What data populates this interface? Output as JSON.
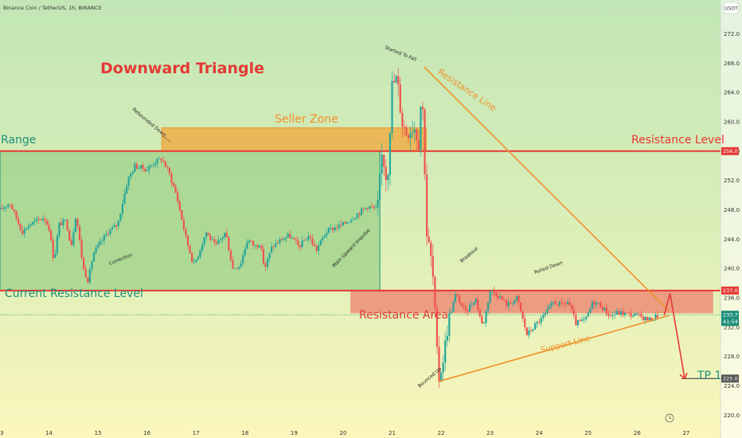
{
  "header": {
    "symbol_line": "Binance Coin / TetherUS, 1h, BINANCE",
    "currency": "USDT"
  },
  "colors": {
    "up": "#26a69a",
    "down": "#ef5350",
    "resistance": "#e53935",
    "orange": "#f0902a",
    "teal": "#1e8f7a",
    "range_fill": "#9ed28a",
    "price_tag": "#1e8f7a"
  },
  "labels": {
    "downward_triangle": "Downward Triangle",
    "seller_zone": "Seller Zone",
    "range": "Range",
    "resistance_level": "Resistance Level",
    "current_resistance_level": "Current Resistance Level",
    "resistance_area": "Resistance Area",
    "resistance_line": "Resistance Line",
    "support_line": "Support Line",
    "tp1": "TP 1"
  },
  "annotations": {
    "rebounded_down": "Rebounded Down",
    "correction": "Correction",
    "main_upward_impulse": "Main Upward Impulse",
    "started_to_fall": "Started To Fall",
    "breakout": "Breakout",
    "rolled_down": "Rolled Down",
    "bounced_up": "Bounced Up"
  },
  "price_tags": {
    "resistance_level": "256.0",
    "current_resistance": "237.0",
    "last_price": "233.7",
    "countdown": "41:54",
    "tp": "225.0"
  },
  "chart_data": {
    "type": "candlestick",
    "x_ticks": [
      "13",
      "14",
      "15",
      "16",
      "17",
      "18",
      "19",
      "20",
      "21",
      "22",
      "23",
      "24",
      "25",
      "26",
      "27"
    ],
    "y_ticks": [
      "220.0",
      "224.0",
      "228.0",
      "232.0",
      "236.0",
      "240.0",
      "244.0",
      "248.0",
      "252.0",
      "256.0",
      "260.0",
      "264.0",
      "268.0",
      "272.0"
    ],
    "ylim": [
      218.2,
      274
    ],
    "xlim": [
      13,
      27.7
    ],
    "levels": {
      "resistance_level": 256.0,
      "current_resistance": 237.0,
      "last_price": 233.7,
      "tp": 225.0
    },
    "zones": {
      "range": {
        "x": [
          13.0,
          20.75
        ],
        "y": [
          237.0,
          256.0
        ]
      },
      "seller_zone": {
        "x": [
          16.3,
          21.7
        ],
        "y": [
          256.0,
          259.2
        ]
      },
      "resistance_area": {
        "x": [
          20.15,
          27.55
        ],
        "y": [
          233.9,
          237.1
        ]
      }
    },
    "trendlines": {
      "resistance_line": [
        [
          21.65,
          267.5
        ],
        [
          26.65,
          234.2
        ]
      ],
      "support_line": [
        [
          21.95,
          224.6
        ],
        [
          26.65,
          233.6
        ]
      ]
    },
    "projection": [
      [
        26.55,
        233.6
      ],
      [
        26.67,
        236.6
      ],
      [
        26.97,
        225.0
      ]
    ],
    "tp_x": 26.97,
    "path": [
      [
        13.0,
        248.0
      ],
      [
        13.2,
        249.0
      ],
      [
        13.45,
        245.0
      ],
      [
        13.6,
        246.0
      ],
      [
        13.9,
        247.0
      ],
      [
        14.0,
        245.5
      ],
      [
        14.1,
        241.0
      ],
      [
        14.2,
        246.0
      ],
      [
        14.35,
        246.5
      ],
      [
        14.45,
        243.0
      ],
      [
        14.55,
        247.5
      ],
      [
        14.7,
        240.0
      ],
      [
        14.8,
        238.3
      ],
      [
        14.9,
        242.0
      ],
      [
        15.0,
        243.0
      ],
      [
        15.2,
        245.0
      ],
      [
        15.4,
        246.0
      ],
      [
        15.6,
        252.0
      ],
      [
        15.75,
        254.0
      ],
      [
        16.0,
        253.5
      ],
      [
        16.15,
        254.5
      ],
      [
        16.3,
        255.0
      ],
      [
        16.45,
        253.0
      ],
      [
        16.6,
        250.0
      ],
      [
        16.8,
        244.0
      ],
      [
        16.95,
        240.5
      ],
      [
        17.05,
        242.0
      ],
      [
        17.2,
        245.0
      ],
      [
        17.4,
        243.0
      ],
      [
        17.6,
        245.0
      ],
      [
        17.75,
        240.0
      ],
      [
        17.9,
        240.5
      ],
      [
        18.05,
        244.0
      ],
      [
        18.2,
        243.0
      ],
      [
        18.3,
        243.5
      ],
      [
        18.4,
        240.0
      ],
      [
        18.55,
        243.0
      ],
      [
        18.75,
        244.0
      ],
      [
        18.9,
        244.5
      ],
      [
        19.1,
        243.0
      ],
      [
        19.3,
        244.5
      ],
      [
        19.45,
        242.5
      ],
      [
        19.65,
        245.0
      ],
      [
        19.8,
        245.5
      ],
      [
        20.0,
        246.0
      ],
      [
        20.2,
        247.0
      ],
      [
        20.5,
        248.5
      ],
      [
        20.7,
        248.0
      ],
      [
        20.8,
        256.0
      ],
      [
        20.9,
        251.5
      ],
      [
        21.0,
        265.0
      ],
      [
        21.1,
        266.0
      ],
      [
        21.2,
        260.0
      ],
      [
        21.3,
        258.5
      ],
      [
        21.45,
        259.5
      ],
      [
        21.55,
        257.0
      ],
      [
        21.6,
        265.0
      ],
      [
        21.65,
        258.0
      ],
      [
        21.7,
        245.0
      ],
      [
        21.8,
        241.0
      ],
      [
        21.85,
        237.5
      ],
      [
        21.9,
        230.0
      ],
      [
        21.95,
        224.8
      ],
      [
        22.05,
        228.0
      ],
      [
        22.15,
        233.0
      ],
      [
        22.3,
        236.5
      ],
      [
        22.5,
        234.0
      ],
      [
        22.7,
        236.0
      ],
      [
        22.85,
        232.0
      ],
      [
        23.0,
        237.0
      ],
      [
        23.15,
        236.5
      ],
      [
        23.35,
        235.0
      ],
      [
        23.55,
        236.0
      ],
      [
        23.75,
        231.0
      ],
      [
        23.95,
        232.5
      ],
      [
        24.1,
        233.5
      ],
      [
        24.3,
        235.5
      ],
      [
        24.45,
        235.0
      ],
      [
        24.6,
        235.5
      ],
      [
        24.75,
        232.5
      ],
      [
        24.95,
        233.0
      ],
      [
        25.1,
        235.5
      ],
      [
        25.25,
        235.0
      ],
      [
        25.45,
        233.5
      ],
      [
        25.6,
        234.0
      ],
      [
        25.8,
        233.8
      ],
      [
        26.0,
        233.6
      ],
      [
        26.25,
        233.0
      ],
      [
        26.45,
        233.7
      ]
    ]
  }
}
